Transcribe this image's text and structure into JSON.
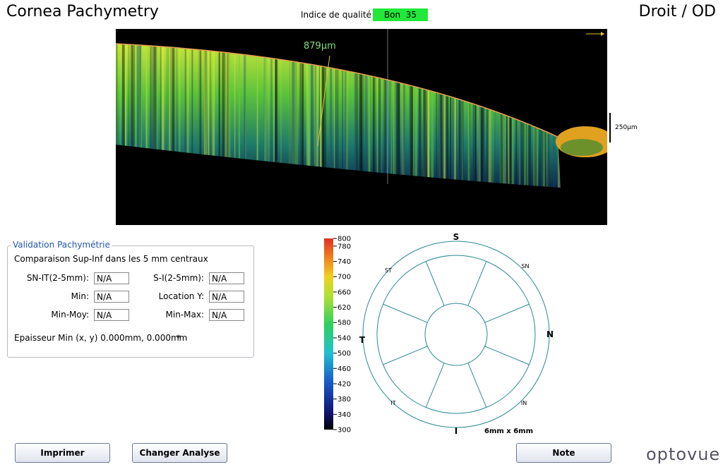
{
  "header": {
    "title": "Cornea Pachymetry",
    "quality_label": "Indice de qualité",
    "quality_value": "Bon  35",
    "eye": "Droit / OD"
  },
  "scan": {
    "thickness_label": "879µm",
    "scale_label": "250µm"
  },
  "validation": {
    "title": "Validation Pachymétrie",
    "subtitle": "Comparaison Sup-Inf dans les 5 mm centraux",
    "fields": [
      {
        "label": "SN-IT(2-5mm):",
        "value": "N/A"
      },
      {
        "label": "Min:",
        "value": "N/A"
      },
      {
        "label": "Min-Moy:",
        "value": "N/A"
      },
      {
        "label": "S-I(2-5mm):",
        "value": "N/A"
      },
      {
        "label": "Location Y:",
        "value": "N/A"
      },
      {
        "label": "Min-Max:",
        "value": "N/A"
      }
    ],
    "min_thickness": "Epaisseur Min (x, y) 0.000mm, 0.000mm",
    "asterisk": "*"
  },
  "color_scale": {
    "ticks": [
      800,
      780,
      740,
      700,
      660,
      620,
      580,
      540,
      500,
      460,
      420,
      380,
      340,
      300
    ]
  },
  "sector_map": {
    "labels": [
      "S",
      "SN",
      "N",
      "IN",
      "I",
      "IT",
      "T",
      "ST"
    ],
    "size": "6mm x 6mm"
  },
  "buttons": [
    "Imprimer",
    "Changer Analyse",
    "Note"
  ],
  "logo": "optovue"
}
